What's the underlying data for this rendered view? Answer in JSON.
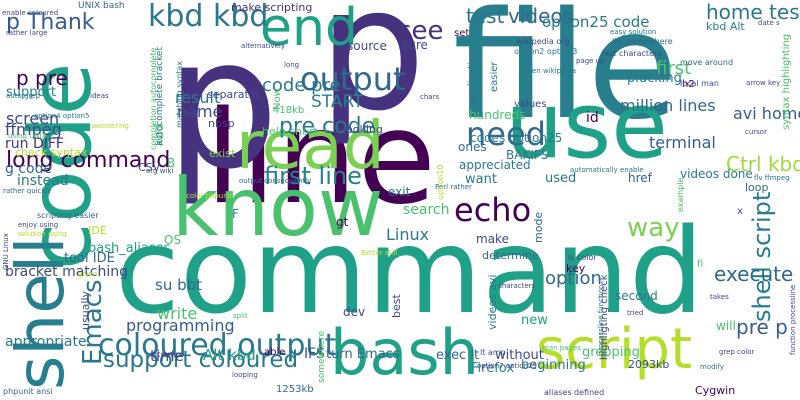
{
  "colors": {
    "background": "#ffffff",
    "palette": [
      "#440154",
      "#46327e",
      "#365c8d",
      "#277f8e",
      "#1fa187",
      "#4ac16d",
      "#a0da39",
      "#fde725"
    ]
  },
  "words": [
    {
      "text": "command",
      "color": "#1fa187"
    },
    {
      "text": "line",
      "color": "#440154"
    },
    {
      "text": "file",
      "color": "#277f8e"
    },
    {
      "text": "p",
      "color": "#46327e"
    },
    {
      "text": "p",
      "color": "#46327e"
    },
    {
      "text": "know",
      "color": "#4ac16d"
    },
    {
      "text": "code",
      "color": "#1fa187"
    },
    {
      "text": "shell",
      "color": "#277f8e"
    },
    {
      "text": "use",
      "color": "#1fa187"
    },
    {
      "text": "read",
      "color": "#7ad151"
    },
    {
      "text": "end",
      "color": "#1fa187"
    },
    {
      "text": "bash",
      "color": "#1fa187"
    },
    {
      "text": "script",
      "color": "#b5de2b"
    },
    {
      "text": "Emacs",
      "color": "#2a788e"
    },
    {
      "text": "kbd kbd",
      "color": "#2a788e"
    },
    {
      "text": "coloured output",
      "color": "#2a788e"
    },
    {
      "text": "output",
      "color": "#31688e"
    },
    {
      "text": "echo",
      "color": "#440154"
    },
    {
      "text": "need",
      "color": "#31688e"
    },
    {
      "text": "see",
      "color": "#46327e"
    },
    {
      "text": "shell script",
      "color": "#277f8e"
    },
    {
      "text": "support coloured",
      "color": "#2a788e"
    },
    {
      "text": "test",
      "color": "#2a788e"
    },
    {
      "text": "videos",
      "color": "#31688e"
    },
    {
      "text": "home test",
      "color": "#2a788e"
    },
    {
      "text": "way",
      "color": "#7ad151"
    },
    {
      "text": "first line",
      "color": "#26828e"
    },
    {
      "text": "pre code",
      "color": "#2a788e"
    },
    {
      "text": "Ctrl kbd",
      "color": "#a0da39"
    },
    {
      "text": "pre p",
      "color": "#365c8d"
    },
    {
      "text": "execute",
      "color": "#31688e"
    },
    {
      "text": "long command",
      "color": "#440154"
    },
    {
      "text": "p pre",
      "color": "#440154"
    },
    {
      "text": "p Thank",
      "color": "#365c8d"
    },
    {
      "text": "option25 code",
      "color": "#2a788e"
    },
    {
      "text": "first",
      "color": "#4ac16d"
    },
    {
      "text": "option",
      "color": "#31688e"
    },
    {
      "text": "million lines",
      "color": "#31688e"
    },
    {
      "text": "avi home",
      "color": "#365c8d"
    },
    {
      "text": "terminal",
      "color": "#365c8d"
    },
    {
      "text": "Linux",
      "color": "#2a788e"
    },
    {
      "text": "write",
      "color": "#4ac16d"
    },
    {
      "text": "programming",
      "color": "#365c8d"
    },
    {
      "text": "su bbt",
      "color": "#31688e"
    },
    {
      "text": "Alt kbd",
      "color": "#1fa187"
    },
    {
      "text": "time",
      "color": "#3b528b"
    },
    {
      "text": "START",
      "color": "#26828e"
    },
    {
      "text": "code pre",
      "color": "#2a788e"
    },
    {
      "text": "result",
      "color": "#2a788e"
    },
    {
      "text": "name",
      "color": "#3e4989"
    },
    {
      "text": "screen",
      "color": "#3e4989"
    },
    {
      "text": "ffmpeg",
      "color": "#3e4989"
    },
    {
      "text": "run DIFF",
      "color": "#46327e"
    },
    {
      "text": "g code",
      "color": "#31688e"
    },
    {
      "text": "instead",
      "color": "#2a788e"
    },
    {
      "text": "bash_aliases",
      "color": "#1fa187"
    },
    {
      "text": "bracket matching",
      "color": "#3e4989"
    },
    {
      "text": "tool IDE",
      "color": "#31688e"
    },
    {
      "text": "appropriate",
      "color": "#2a788e"
    },
    {
      "text": "support",
      "color": "#26828e"
    },
    {
      "text": "IFS",
      "color": "#3b528b"
    },
    {
      "text": "turn Emacs",
      "color": "#31688e"
    },
    {
      "text": "exec lt",
      "color": "#31688e"
    },
    {
      "text": "Firefox",
      "color": "#26828e"
    },
    {
      "text": "beginning",
      "color": "#2a788e"
    },
    {
      "text": "grepping",
      "color": "#4ac16d"
    },
    {
      "text": "without",
      "color": "#3e4989"
    },
    {
      "text": "new",
      "color": "#1fa187"
    },
    {
      "text": "dev",
      "color": "#3e4989"
    },
    {
      "text": "second",
      "color": "#2a788e"
    },
    {
      "text": "will",
      "color": "#4ac16d"
    },
    {
      "text": "make",
      "color": "#3e4989"
    },
    {
      "text": "exit",
      "color": "#31688e"
    },
    {
      "text": "search",
      "color": "#4ac16d"
    },
    {
      "text": "want",
      "color": "#2a788e"
    },
    {
      "text": "used",
      "color": "#2a788e"
    },
    {
      "text": "mode",
      "color": "#31688e"
    },
    {
      "text": "href",
      "color": "#365c8d"
    },
    {
      "text": "id",
      "color": "#440154"
    },
    {
      "text": "ones",
      "color": "#31688e"
    },
    {
      "text": "videos done",
      "color": "#2a788e"
    },
    {
      "text": "codes option25",
      "color": "#2a788e"
    },
    {
      "text": "plucking",
      "color": "#2a788e"
    },
    {
      "text": "BAKIFS",
      "color": "#2a788e"
    },
    {
      "text": "appreciated",
      "color": "#2a788e"
    },
    {
      "text": "hundreds",
      "color": "#4ac16d"
    },
    {
      "text": "looping",
      "color": "#3e4989"
    },
    {
      "text": "source",
      "color": "#3e4989"
    },
    {
      "text": "sure",
      "color": "#3e4989"
    },
    {
      "text": "help short",
      "color": "#4ac16d"
    },
    {
      "text": "exist",
      "color": "#7ad151"
    },
    {
      "text": "separator",
      "color": "#3e4989"
    },
    {
      "text": "nbsp",
      "color": "#3e4989"
    },
    {
      "text": "418kb",
      "color": "#4ac16d"
    },
    {
      "text": "Now",
      "color": "#4ac16d"
    },
    {
      "text": "CSV",
      "color": "#3e4989"
    },
    {
      "text": "OS",
      "color": "#4ac16d"
    },
    {
      "text": "IDE",
      "color": "#b5de2b"
    },
    {
      "text": "F",
      "color": "#26828e"
    },
    {
      "text": "B",
      "color": "#4ac16d"
    },
    {
      "text": "kbd",
      "color": "#4ac16d"
    },
    {
      "text": "usually",
      "color": "#3e4989"
    },
    {
      "text": "best",
      "color": "#3e4989"
    },
    {
      "text": "key",
      "color": "#440154"
    },
    {
      "text": "gt",
      "color": "#440154"
    },
    {
      "text": "gt amp",
      "color": "#46327e"
    },
    {
      "text": "lt amp",
      "color": "#3b528b"
    },
    {
      "text": "2093kb",
      "color": "#3e4989"
    },
    {
      "text": "1253kb",
      "color": "#31688e"
    },
    {
      "text": "Cygwin",
      "color": "#440154"
    },
    {
      "text": "h2",
      "color": "#440154"
    },
    {
      "text": "fi",
      "color": "#4ac16d"
    },
    {
      "text": "x",
      "color": "#3e4989"
    },
    {
      "text": "loop",
      "color": "#31688e"
    },
    {
      "text": "make scripting",
      "color": "#46327e"
    },
    {
      "text": "kbd Alt",
      "color": "#26828e"
    },
    {
      "text": "set",
      "color": "#440154"
    },
    {
      "text": "determine",
      "color": "#31688e"
    },
    {
      "text": "able",
      "color": "#440154"
    },
    {
      "text": "values",
      "color": "#3e4989"
    },
    {
      "text": "application",
      "color": "#2a788e"
    },
    {
      "text": "easier",
      "color": "#2a788e"
    },
    {
      "text": "syntax highlighting",
      "color": "#4ac16d"
    },
    {
      "text": "highligting check",
      "color": "#3e4989"
    },
    {
      "text": "videos avi",
      "color": "#2a788e"
    },
    {
      "text": "completion autocomplete",
      "color": "#4ac16d"
    },
    {
      "text": "autocomplete bracket",
      "color": "#2a788e"
    },
    {
      "text": "matching syntax",
      "color": "#2a788e"
    },
    {
      "text": "check syntax",
      "color": "#b5de2b"
    },
    {
      "text": "UNIX bash",
      "color": "#31688e"
    },
    {
      "text": "rather large",
      "color": "#3e4989"
    },
    {
      "text": "auto grep",
      "color": "#2a788e"
    },
    {
      "text": "using UNIX",
      "color": "#4ac16d"
    },
    {
      "text": "enable coloured",
      "color": "#3e4989"
    },
    {
      "text": "rather quickly",
      "color": "#31688e"
    },
    {
      "text": "scripting easier",
      "color": "#31688e"
    },
    {
      "text": "enjoy using",
      "color": "#3e4989"
    },
    {
      "text": "solution using",
      "color": "#b5de2b"
    },
    {
      "text": "GNU Linux",
      "color": "#3e4989"
    },
    {
      "text": "phpunit ansi",
      "color": "#31688e"
    },
    {
      "text": "wikipedia org",
      "color": "#3e4989"
    },
    {
      "text": "option2 option3",
      "color": "#2a788e"
    },
    {
      "text": "en wikipedia",
      "color": "#2a788e"
    },
    {
      "text": "list somewhere",
      "color": "#31688e"
    },
    {
      "text": "last characters",
      "color": "#3e4989"
    },
    {
      "text": "move around",
      "color": "#31688e"
    },
    {
      "text": "arrow key",
      "color": "#3e4989"
    },
    {
      "text": "local man",
      "color": "#3e4989"
    },
    {
      "text": "automatically enable",
      "color": "#2a788e"
    },
    {
      "text": "processline function",
      "color": "#2a788e"
    },
    {
      "text": "function processline",
      "color": "#3e4989"
    },
    {
      "text": "grep color",
      "color": "#3e4989"
    },
    {
      "text": "man pages",
      "color": "#4ac16d"
    },
    {
      "text": "aliases defined",
      "color": "#3e4989"
    },
    {
      "text": "Perl rather",
      "color": "#31688e"
    },
    {
      "text": "Better still",
      "color": "#b5de2b"
    },
    {
      "text": "ls color",
      "color": "#3e4989"
    },
    {
      "text": "flv ffmpeg",
      "color": "#2a788e"
    },
    {
      "text": "output consequently",
      "color": "#31688e"
    },
    {
      "text": "org wiki",
      "color": "#3e4989"
    },
    {
      "text": "color phpunit",
      "color": "#b5de2b"
    },
    {
      "text": "page up",
      "color": "#3e4989"
    },
    {
      "text": "easy solution",
      "color": "#2a788e"
    },
    {
      "text": "ideas",
      "color": "#3e4989"
    },
    {
      "text": "alternatively",
      "color": "#3e4989"
    },
    {
      "text": "long",
      "color": "#3e4989"
    },
    {
      "text": "chars",
      "color": "#3e4989"
    },
    {
      "text": "example",
      "color": "#4ac16d"
    },
    {
      "text": "cursor",
      "color": "#3e4989"
    },
    {
      "text": "modify",
      "color": "#2a788e"
    },
    {
      "text": "given",
      "color": "#b5de2b"
    },
    {
      "text": "split",
      "color": "#4ac16d"
    },
    {
      "text": "takes",
      "color": "#3e4989"
    },
    {
      "text": "tried",
      "color": "#3e4989"
    },
    {
      "text": "characters",
      "color": "#3e4989"
    },
    {
      "text": "somewhere",
      "color": "#4ac16d"
    },
    {
      "text": "option10",
      "color": "#b5de2b"
    },
    {
      "text": "option4 option5",
      "color": "#2a788e"
    },
    {
      "text": "option7 option25",
      "color": "#3e4989"
    },
    {
      "text": "date s",
      "color": "#3e4989"
    },
    {
      "text": "wondering",
      "color": "#b5de2b"
    },
    {
      "text": "looking",
      "color": "#3e4989"
    }
  ]
}
